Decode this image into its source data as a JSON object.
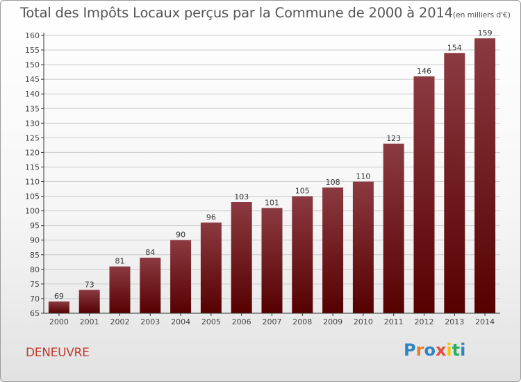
{
  "header": {
    "title": "Total des Impôts Locaux perçus par la Commune de 2000 à 2014",
    "unit": "(en milliers d'€)"
  },
  "commune": "DENEUVRE",
  "logo": {
    "text": "Proxiti",
    "letters": [
      {
        "ch": "P",
        "color": "#2e86c1"
      },
      {
        "ch": "r",
        "color": "#e67e22"
      },
      {
        "ch": "o",
        "color": "#2e86c1"
      },
      {
        "ch": "x",
        "color": "#e74c3c"
      },
      {
        "ch": "i",
        "color": "#f1c40f"
      },
      {
        "ch": "t",
        "color": "#27ae60"
      },
      {
        "ch": "i",
        "color": "#2e86c1"
      }
    ]
  },
  "colors": {
    "bar_top": "#8b3a41",
    "bar_bottom": "#560000",
    "grid": "#c9c9c9",
    "axis": "#333333",
    "title": "#555555",
    "commune": "#c0392b"
  },
  "chart_data": {
    "type": "bar",
    "title": "Total des Impôts Locaux perçus par la Commune de 2000 à 2014",
    "xlabel": "",
    "ylabel": "",
    "categories": [
      "2000",
      "2001",
      "2002",
      "2003",
      "2004",
      "2005",
      "2006",
      "2007",
      "2008",
      "2009",
      "2010",
      "2011",
      "2012",
      "2013",
      "2014"
    ],
    "values": [
      69,
      73,
      81,
      84,
      90,
      96,
      103,
      101,
      105,
      108,
      110,
      123,
      146,
      154,
      159
    ],
    "ylim": [
      65,
      160
    ],
    "yticks": [
      65,
      70,
      75,
      80,
      85,
      90,
      95,
      100,
      105,
      110,
      115,
      120,
      125,
      130,
      135,
      140,
      145,
      150,
      155,
      160
    ],
    "grid": true
  }
}
